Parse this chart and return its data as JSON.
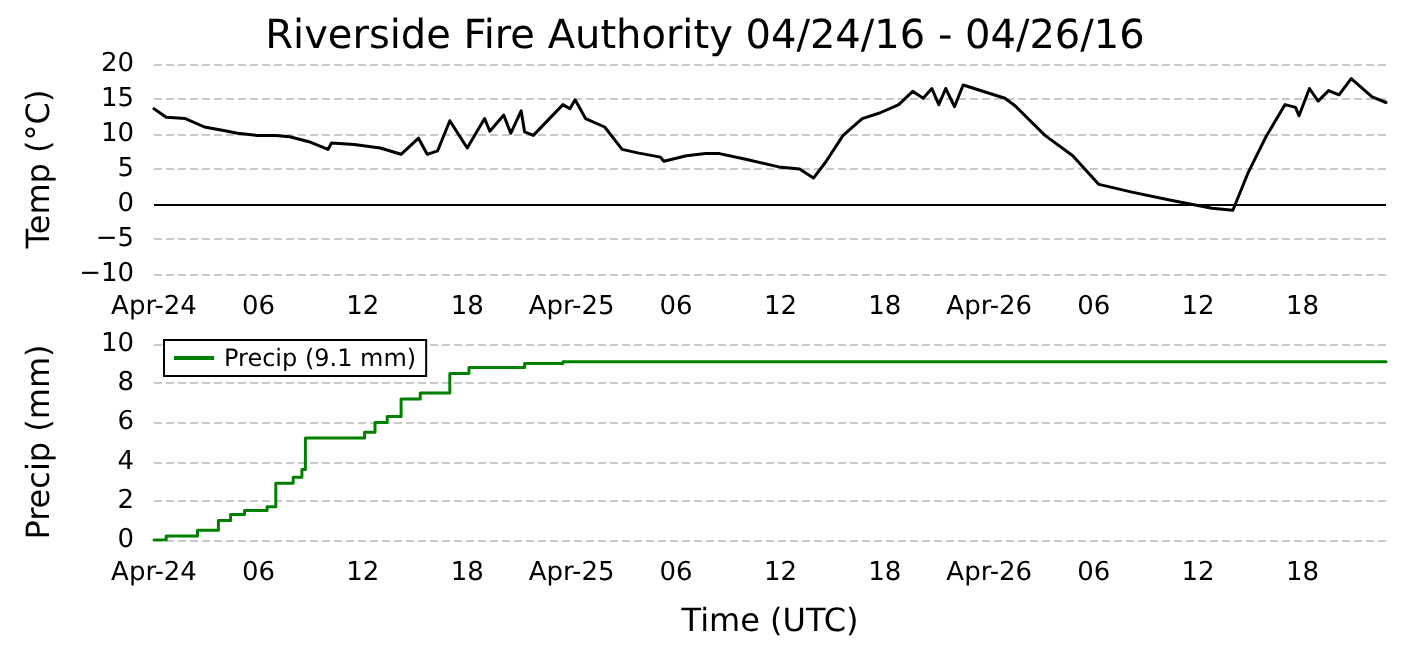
{
  "chart_data": [
    {
      "type": "line",
      "title": "Riverside Fire Authority 04/24/16 - 04/26/16",
      "ylabel": "Temp (°C)",
      "x": [
        "--04-24T00:00",
        "--04-24T00:42",
        "--04-24T01:48",
        "--04-24T02:54",
        "--04-24T04:00",
        "--04-24T04:48",
        "--04-24T05:54",
        "--04-24T07:00",
        "--04-24T07:48",
        "--04-24T08:54",
        "--04-24T10:00",
        "--04-24T10:12",
        "--04-24T11:30",
        "--04-24T13:00",
        "--04-24T14:12",
        "--04-24T15:12",
        "--04-24T15:42",
        "--04-24T16:18",
        "--04-24T17:00",
        "--04-24T18:00",
        "--04-24T19:00",
        "--04-24T19:18",
        "--04-24T20:06",
        "--04-24T20:30",
        "--04-24T21:06",
        "--04-24T21:18",
        "--04-24T21:48",
        "--04-24T23:30",
        "--04-24T23:54",
        "--04-25T00:12",
        "--04-25T00:48",
        "--04-25T01:54",
        "--04-25T02:54",
        "--04-25T03:48",
        "--04-25T05:06",
        "--04-25T05:18",
        "--04-25T06:36",
        "--04-25T07:42",
        "--04-25T08:30",
        "--04-25T10:00",
        "--04-25T11:54",
        "--04-25T13:06",
        "--04-25T13:54",
        "--04-25T14:36",
        "--04-25T15:36",
        "--04-25T16:42",
        "--04-25T17:42",
        "--04-25T18:48",
        "--04-25T19:36",
        "--04-25T20:12",
        "--04-25T20:42",
        "--04-25T21:06",
        "--04-25T21:30",
        "--04-25T22:00",
        "--04-25T22:30",
        "--04-26T00:54",
        "--04-26T01:30",
        "--04-26T03:12",
        "--04-26T04:48",
        "--04-26T06:18",
        "--04-26T08:12",
        "--04-26T10:30",
        "--04-26T12:48",
        "--04-26T14:00",
        "--04-26T14:54",
        "--04-26T15:54",
        "--04-26T17:00",
        "--04-26T17:36",
        "--04-26T17:48",
        "--04-26T18:24",
        "--04-26T18:54",
        "--04-26T19:30",
        "--04-26T20:06",
        "--04-26T20:48",
        "--04-26T22:00",
        "--04-26T22:48"
      ],
      "series": [
        {
          "color": "#000000",
          "values": [
            13.6,
            12.4,
            12.2,
            11.0,
            10.5,
            10.1,
            9.8,
            9.8,
            9.6,
            8.9,
            7.8,
            8.7,
            8.5,
            8.0,
            7.1,
            9.4,
            7.1,
            7.6,
            11.9,
            8.0,
            12.2,
            10.4,
            12.7,
            10.1,
            13.3,
            10.3,
            9.8,
            14.2,
            13.6,
            14.9,
            12.2,
            11.0,
            7.8,
            7.3,
            6.7,
            6.1,
            6.9,
            7.2,
            7.2,
            6.4,
            5.3,
            5.0,
            3.7,
            6.0,
            9.8,
            12.2,
            13.0,
            14.2,
            16.1,
            15.1,
            16.5,
            14.2,
            16.5,
            13.9,
            17.0,
            15.1,
            14.0,
            9.8,
            6.9,
            2.8,
            1.7,
            0.5,
            -0.6,
            -0.9,
            4.6,
            9.6,
            14.2,
            13.8,
            12.6,
            16.5,
            14.7,
            16.2,
            15.6,
            17.9,
            15.3,
            14.5
          ]
        }
      ],
      "xlim": [
        "--04-24T00:00",
        "--04-26T22:48"
      ],
      "xticks": [
        {
          "value": "--04-24T00:00",
          "label": "Apr-24"
        },
        {
          "value": "--04-24T06:00",
          "label": "06"
        },
        {
          "value": "--04-24T12:00",
          "label": "12"
        },
        {
          "value": "--04-24T18:00",
          "label": "18"
        },
        {
          "value": "--04-25T00:00",
          "label": "Apr-25"
        },
        {
          "value": "--04-25T06:00",
          "label": "06"
        },
        {
          "value": "--04-25T12:00",
          "label": "12"
        },
        {
          "value": "--04-25T18:00",
          "label": "18"
        },
        {
          "value": "--04-26T00:00",
          "label": "Apr-26"
        },
        {
          "value": "--04-26T06:00",
          "label": "06"
        },
        {
          "value": "--04-26T12:00",
          "label": "12"
        },
        {
          "value": "--04-26T18:00",
          "label": "18"
        }
      ],
      "ylim": [
        -10,
        20
      ],
      "yticks": [
        -10,
        -5,
        0,
        5,
        10,
        15,
        20
      ],
      "grid": "y",
      "ref_lines": [
        {
          "axis": "y",
          "value": 0,
          "color": "#000000",
          "line_style": "solid"
        }
      ]
    },
    {
      "type": "step",
      "ylabel": "Precip (mm)",
      "xlabel": "Time (UTC)",
      "x": [
        "--04-24T00:00",
        "--04-24T00:42",
        "--04-24T02:30",
        "--04-24T03:42",
        "--04-24T04:24",
        "--04-24T05:12",
        "--04-24T06:30",
        "--04-24T07:00",
        "--04-24T08:00",
        "--04-24T08:30",
        "--04-24T08:42",
        "--04-24T12:06",
        "--04-24T12:42",
        "--04-24T13:24",
        "--04-24T14:12",
        "--04-24T15:18",
        "--04-24T15:42",
        "--04-24T17:00",
        "--04-24T18:06",
        "--04-24T21:18",
        "--04-24T23:30",
        "--04-26T22:48"
      ],
      "series": [
        {
          "name": "Precip (9.1 mm)",
          "color": "#008000",
          "values": [
            0,
            0.2,
            0.5,
            1.0,
            1.3,
            1.5,
            1.7,
            2.9,
            3.2,
            3.6,
            5.2,
            5.5,
            6.0,
            6.3,
            7.2,
            7.5,
            null,
            8.5,
            8.8,
            9.0,
            9.1,
            9.1
          ]
        }
      ],
      "xlim": [
        "--04-24T00:00",
        "--04-26T22:48"
      ],
      "xticks": [
        {
          "value": "--04-24T00:00",
          "label": "Apr-24"
        },
        {
          "value": "--04-24T06:00",
          "label": "06"
        },
        {
          "value": "--04-24T12:00",
          "label": "12"
        },
        {
          "value": "--04-24T18:00",
          "label": "18"
        },
        {
          "value": "--04-25T00:00",
          "label": "Apr-25"
        },
        {
          "value": "--04-25T06:00",
          "label": "06"
        },
        {
          "value": "--04-25T12:00",
          "label": "12"
        },
        {
          "value": "--04-25T18:00",
          "label": "18"
        },
        {
          "value": "--04-26T00:00",
          "label": "Apr-26"
        },
        {
          "value": "--04-26T06:00",
          "label": "06"
        },
        {
          "value": "--04-26T12:00",
          "label": "12"
        },
        {
          "value": "--04-26T18:00",
          "label": "18"
        }
      ],
      "ylim": [
        0,
        10
      ],
      "yticks": [
        0,
        2,
        4,
        6,
        8,
        10
      ],
      "grid": "y",
      "legend": "top left"
    }
  ]
}
